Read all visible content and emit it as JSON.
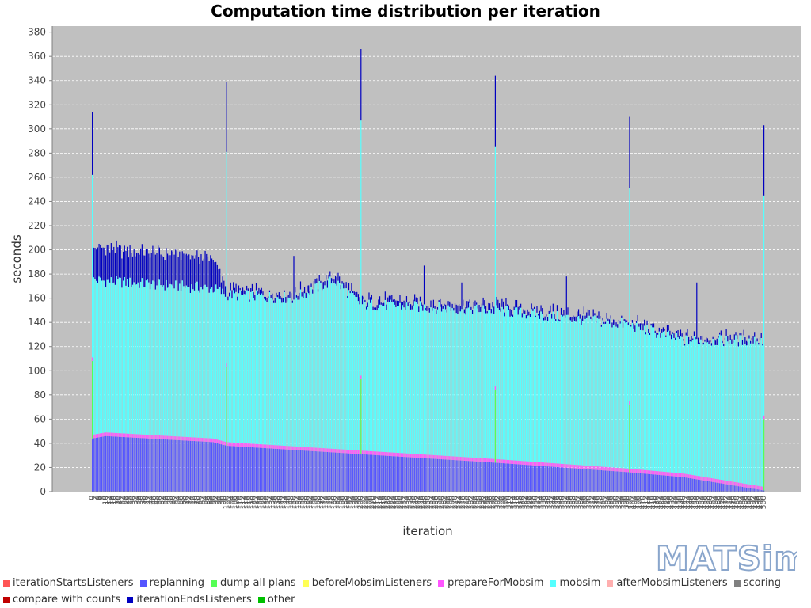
{
  "title": "Computation time distribution per iteration",
  "logo_text": "MATSim",
  "chart_data": {
    "type": "bar",
    "stacked": true,
    "title": "Computation time distribution per iteration",
    "xlabel": "iteration",
    "ylabel": "seconds",
    "ylim": [
      0,
      385
    ],
    "yticks": [
      0,
      20,
      40,
      60,
      80,
      100,
      120,
      140,
      160,
      180,
      200,
      220,
      240,
      260,
      280,
      300,
      320,
      340,
      360,
      380
    ],
    "x_range": [
      0,
      500
    ],
    "grid": true,
    "legend_position": "bottom",
    "series": [
      {
        "name": "iterationStartsListeners",
        "color": "#ff5555"
      },
      {
        "name": "replanning",
        "color": "#5555ff"
      },
      {
        "name": "dump all plans",
        "color": "#55ff55"
      },
      {
        "name": "beforeMobsimListeners",
        "color": "#ffff55"
      },
      {
        "name": "prepareForMobsim",
        "color": "#ff55ff"
      },
      {
        "name": "mobsim",
        "color": "#55ffff"
      },
      {
        "name": "afterMobsimListeners",
        "color": "#ffafaf"
      },
      {
        "name": "scoring",
        "color": "#808080"
      },
      {
        "name": "compare with counts",
        "color": "#c00000"
      },
      {
        "name": "iterationEndsListeners",
        "color": "#0000c0"
      },
      {
        "name": "other",
        "color": "#00c000"
      }
    ],
    "value_profile": {
      "replanning": {
        "x": [
          0,
          10,
          90,
          100,
          200,
          300,
          400,
          440,
          500
        ],
        "y": [
          44,
          46,
          41,
          38,
          31,
          24,
          16,
          12,
          1
        ]
      },
      "prepareForMobsim": 3,
      "mobsim_end": {
        "x": [
          0,
          90,
          100,
          150,
          180,
          200,
          300,
          400,
          440,
          500
        ],
        "y": [
          175,
          168,
          163,
          160,
          175,
          155,
          150,
          138,
          125,
          125
        ]
      },
      "iterationEndsListeners": {
        "x": [
          0,
          90,
          100,
          200,
          300,
          400,
          440,
          500
        ],
        "y": [
          27,
          25,
          4,
          4,
          4,
          3,
          3,
          3
        ]
      },
      "mobsim_jitter": 5,
      "ends_jitter": 3,
      "dump_all_plans": {
        "every": 100,
        "y": 62
      }
    },
    "peaks": [
      {
        "x": 0,
        "total": 314,
        "mobsim_end": 262,
        "dump_top": 108
      },
      {
        "x": 100,
        "total": 339,
        "mobsim_end": 281,
        "dump_top": 103
      },
      {
        "x": 200,
        "total": 366,
        "mobsim_end": 307,
        "dump_top": 93
      },
      {
        "x": 300,
        "total": 344,
        "mobsim_end": 285,
        "dump_top": 84
      },
      {
        "x": 400,
        "total": 310,
        "mobsim_end": 251,
        "dump_top": 72
      },
      {
        "x": 500,
        "total": 303,
        "mobsim_end": 245,
        "dump_top": 60
      }
    ],
    "spikes": [
      {
        "x": 150,
        "total": 195
      },
      {
        "x": 247,
        "total": 187
      },
      {
        "x": 275,
        "total": 173
      },
      {
        "x": 353,
        "total": 178
      },
      {
        "x": 450,
        "total": 173
      }
    ]
  }
}
